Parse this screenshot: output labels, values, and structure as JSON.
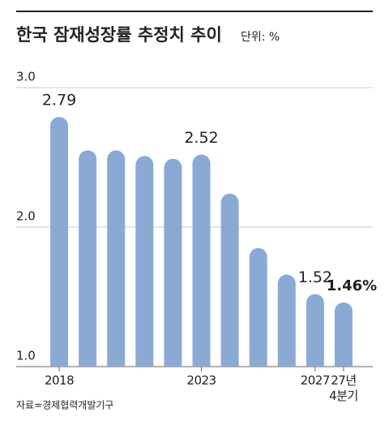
{
  "chart_data": {
    "type": "bar",
    "title": "한국 잠재성장률 추정치 추이",
    "unit": "단위: %",
    "source": "자료=경제협력개발기구",
    "categories": [
      "2018",
      null,
      null,
      null,
      null,
      "2023",
      null,
      null,
      null,
      "2027",
      "27년\n4분기"
    ],
    "values": [
      2.79,
      2.55,
      2.55,
      2.51,
      2.49,
      2.52,
      2.24,
      1.85,
      1.66,
      1.52,
      1.46
    ],
    "value_labels": [
      "2.79",
      null,
      null,
      null,
      null,
      "2.52",
      null,
      null,
      null,
      "1.52",
      "1.46%"
    ],
    "color": "#8aaad3",
    "ylim": [
      1,
      3
    ],
    "yticks": [
      {
        "value": 1,
        "label": "1.0"
      },
      {
        "value": 2,
        "label": "2.0"
      },
      {
        "value": 3,
        "label": "3.0"
      }
    ],
    "grid": true
  }
}
